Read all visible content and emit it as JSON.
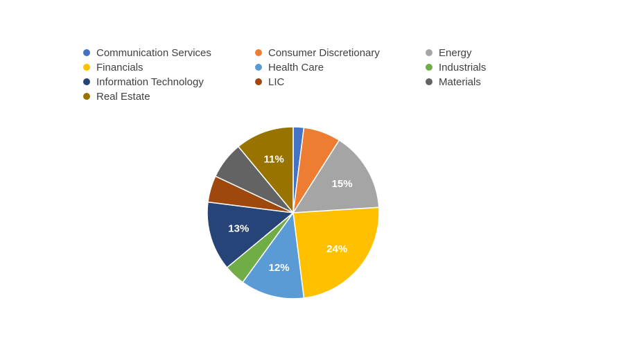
{
  "chart_data": {
    "type": "pie",
    "categories": [
      "Communication Services",
      "Consumer Discretionary",
      "Energy",
      "Financials",
      "Health Care",
      "Industrials",
      "Information Technology",
      "LIC",
      "Materials",
      "Real Estate"
    ],
    "values": [
      2,
      7,
      15,
      24,
      12,
      4,
      13,
      5,
      7,
      11
    ],
    "colors": [
      "#4472C4",
      "#ED7D31",
      "#A5A5A5",
      "#FFC000",
      "#5B9BD5",
      "#70AD47",
      "#264478",
      "#9E480E",
      "#636363",
      "#997300"
    ],
    "data_labels": [
      "",
      "",
      "15%",
      "24%",
      "12%",
      "",
      "13%",
      "",
      "",
      "11%"
    ],
    "title": "",
    "legend_position": "top",
    "legend_columns": 3,
    "start_angle_deg": 0,
    "direction": "clockwise",
    "slice_border_color": "#FFFFFF",
    "data_label_color": "#FFFFFF"
  }
}
